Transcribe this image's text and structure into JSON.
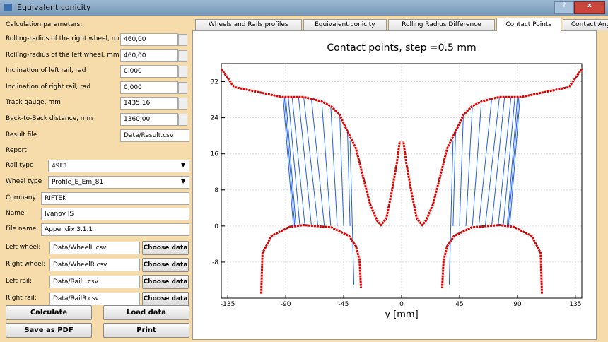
{
  "window": {
    "title": "Equivalent conicity"
  },
  "form": {
    "heading": "Calculation parameters:",
    "fields": [
      {
        "label": "Rolling-radius of the right wheel, mm",
        "value": "460,00"
      },
      {
        "label": "Rolling-radius of the left wheel, mm",
        "value": "460,00"
      },
      {
        "label": "Inclination of left rail, rad",
        "value": "0,000"
      },
      {
        "label": "Inclination of right rail, rad",
        "value": "0,000"
      },
      {
        "label": "Track gauge, mm",
        "value": "1435,16"
      },
      {
        "label": "Back-to-Back distance, mm",
        "value": "1360,00"
      }
    ],
    "result_file": {
      "label": "Result file",
      "value": "Data/Result.csv"
    },
    "report": "Report:",
    "selects": [
      {
        "label": "Rail type",
        "value": "49E1"
      },
      {
        "label": "Wheel type",
        "value": "Profile_E_Em_81"
      }
    ],
    "texts": [
      {
        "label": "Company",
        "value": "RIFTEK"
      },
      {
        "label": "Name",
        "value": "Ivanov IS"
      },
      {
        "label": "File name",
        "value": "Appendix 3.1.1"
      }
    ],
    "files": [
      {
        "label": "Left wheel:",
        "value": "Data/WheelL.csv",
        "button": "Choose data"
      },
      {
        "label": "Right wheel:",
        "value": "Data/WheelR.csv",
        "button": "Choose data"
      },
      {
        "label": "Left rail:",
        "value": "Data/RailL.csv",
        "button": "Choose data"
      },
      {
        "label": "Right rail:",
        "value": "Data/RailR.csv",
        "button": "Choose data"
      }
    ],
    "buttons": [
      "Calculate",
      "Load data",
      "Save as PDF",
      "Print"
    ]
  },
  "tabs": [
    "Wheels and Rails profiles",
    "Equivalent conicity",
    "Rolling Radius Difference",
    "Contact Points",
    "Contact Angles"
  ],
  "active_tab": 3,
  "chart_data": {
    "type": "line",
    "title": "Contact points, step =0.5 mm",
    "x_label": "y [mm]",
    "xlim": [
      -140,
      140
    ],
    "ylim": [
      -16,
      36
    ],
    "xticks": [
      -135,
      -90,
      -45,
      0,
      45,
      90,
      135
    ],
    "yticks": [
      -8,
      0,
      8,
      16,
      24,
      32
    ],
    "series": [
      {
        "color": "#e00000",
        "x": [
          -140,
          -130,
          -92.8,
          -76,
          -70,
          -62,
          -54.5,
          -48,
          -43.6,
          -35.4,
          -30,
          -24.4,
          -19,
          -16,
          -11.8,
          -7.4,
          -3.6,
          -1.4
        ],
        "values": [
          34.8,
          30.8,
          28.6,
          28.6,
          28.2,
          27.6,
          26.5,
          24.6,
          21.9,
          17.2,
          11,
          4.8,
          1.2,
          0.2,
          1.7,
          7.9,
          14.1,
          18.8
        ]
      },
      {
        "color": "#e00000",
        "x": [
          -109,
          -108,
          -101,
          -87,
          -76,
          -54.5,
          -40.8,
          -35.4,
          -32.6,
          -31.5
        ],
        "values": [
          -15,
          -6,
          -2.2,
          -0.2,
          0.2,
          -0.3,
          -2.2,
          -4.5,
          -7.6,
          -13.8
        ]
      },
      {
        "color": "#e00000",
        "x": [
          140,
          130,
          92.8,
          76,
          70,
          62,
          54.5,
          48,
          43.6,
          35.4,
          30,
          24.4,
          19,
          16,
          11.8,
          7.4,
          3.6,
          1.4
        ],
        "values": [
          34.8,
          30.8,
          28.6,
          28.6,
          28.2,
          27.6,
          26.5,
          24.6,
          21.9,
          17.2,
          11,
          4.8,
          1.2,
          0.2,
          1.7,
          7.9,
          14.1,
          18.8
        ]
      },
      {
        "color": "#e00000",
        "x": [
          109,
          108,
          101,
          87,
          76,
          54.5,
          40.8,
          35.4,
          32.6,
          31.5
        ],
        "values": [
          -15,
          -6,
          -2.2,
          -0.2,
          0.2,
          -0.3,
          -2.2,
          -4.5,
          -7.6,
          -13.8
        ]
      }
    ],
    "contact_color": "#1f5fe0",
    "contact_lines": [
      [
        -92,
        28.6,
        -84,
        0
      ],
      [
        -91,
        28.6,
        -83,
        0
      ],
      [
        -90,
        28.6,
        -82,
        0
      ],
      [
        -88,
        28.6,
        -79,
        0
      ],
      [
        -85,
        28.6,
        -75,
        0
      ],
      [
        -80,
        28.6,
        -70,
        0
      ],
      [
        -76,
        28.6,
        -65,
        0
      ],
      [
        -70,
        28.2,
        -60,
        0
      ],
      [
        -62,
        27.6,
        -55,
        0
      ],
      [
        -55,
        26.5,
        -50,
        0
      ],
      [
        -48,
        24.6,
        -45,
        0
      ],
      [
        -42,
        21.2,
        -40,
        0
      ],
      [
        -40,
        19,
        -37,
        -13
      ],
      [
        92,
        28.6,
        84,
        0
      ],
      [
        91,
        28.6,
        83,
        0
      ],
      [
        90,
        28.6,
        82,
        0
      ],
      [
        88,
        28.6,
        79,
        0
      ],
      [
        85,
        28.6,
        75,
        0
      ],
      [
        80,
        28.6,
        70,
        0
      ],
      [
        76,
        28.6,
        65,
        0
      ],
      [
        70,
        28.2,
        60,
        0
      ],
      [
        62,
        27.6,
        55,
        0
      ],
      [
        55,
        26.5,
        50,
        0
      ],
      [
        48,
        24.6,
        45,
        0
      ],
      [
        42,
        21.2,
        40,
        0
      ],
      [
        40,
        19,
        37,
        -13
      ]
    ]
  }
}
